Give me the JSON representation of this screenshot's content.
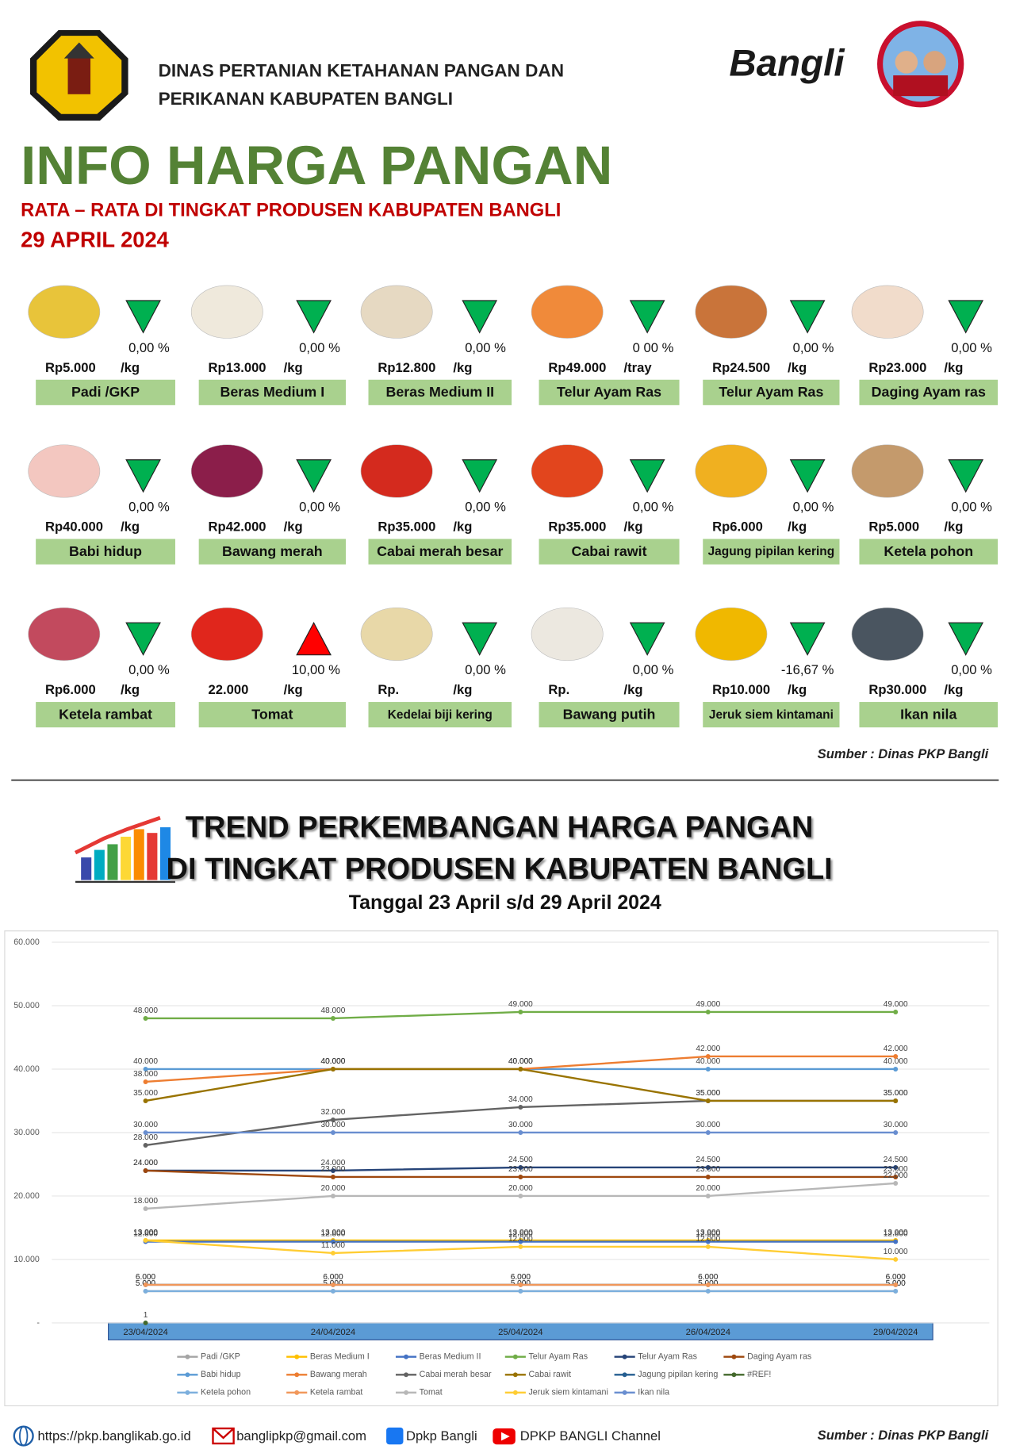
{
  "header": {
    "agency_line1": "DINAS PERTANIAN KETAHANAN PANGAN DAN",
    "agency_line2": "PERIKANAN KABUPATEN BANGLI",
    "brand": "Bangli",
    "title": "INFO HARGA PANGAN",
    "subtitle": "RATA – RATA DI TINGKAT PRODUSEN KABUPATEN BANGLI",
    "date": "29 APRIL 2024"
  },
  "items": [
    {
      "name": "Padi /GKP",
      "price": "Rp5.000",
      "unit": "/kg",
      "change": "0,00 %",
      "trend": "down"
    },
    {
      "name": "Beras Medium I",
      "price": "Rp13.000",
      "unit": "/kg",
      "change": "0,00 %",
      "trend": "down"
    },
    {
      "name": "Beras Medium II",
      "price": "Rp12.800",
      "unit": "/kg",
      "change": "0,00 %",
      "trend": "down"
    },
    {
      "name": "Telur Ayam Ras",
      "price": "Rp49.000",
      "unit": "/tray",
      "change": "0 00 %",
      "trend": "down"
    },
    {
      "name": "Telur Ayam Ras",
      "price": "Rp24.500",
      "unit": "/kg",
      "change": "0,00 %",
      "trend": "down"
    },
    {
      "name": "Daging Ayam ras",
      "price": "Rp23.000",
      "unit": "/kg",
      "change": "0,00 %",
      "trend": "down"
    },
    {
      "name": "Babi hidup",
      "price": "Rp40.000",
      "unit": "/kg",
      "change": "0,00 %",
      "trend": "down"
    },
    {
      "name": "Bawang merah",
      "price": "Rp42.000",
      "unit": "/kg",
      "change": "0,00 %",
      "trend": "down"
    },
    {
      "name": "Cabai merah besar",
      "price": "Rp35.000",
      "unit": "/kg",
      "change": "0,00 %",
      "trend": "down"
    },
    {
      "name": "Cabai rawit",
      "price": "Rp35.000",
      "unit": "/kg",
      "change": "0,00 %",
      "trend": "down"
    },
    {
      "name": "Jagung pipilan kering",
      "price": "Rp6.000",
      "unit": "/kg",
      "change": "0,00 %",
      "trend": "down"
    },
    {
      "name": "Ketela pohon",
      "price": "Rp5.000",
      "unit": "/kg",
      "change": "0,00 %",
      "trend": "down"
    },
    {
      "name": "Ketela rambat",
      "price": "Rp6.000",
      "unit": "/kg",
      "change": "0,00 %",
      "trend": "down"
    },
    {
      "name": "Tomat",
      "price": "22.000",
      "unit": "/kg",
      "change": "10,00 %",
      "trend": "up"
    },
    {
      "name": "Kedelai biji kering",
      "price": "Rp.",
      "unit": "/kg",
      "change": "0,00 %",
      "trend": "down"
    },
    {
      "name": "Bawang putih",
      "price": "Rp.",
      "unit": "/kg",
      "change": "0,00 %",
      "trend": "down"
    },
    {
      "name": "Jeruk siem kintamani",
      "price": "Rp10.000",
      "unit": "/kg",
      "change": "-16,67 %",
      "trend": "down"
    },
    {
      "name": "Ikan nila",
      "price": "Rp30.000",
      "unit": "/kg",
      "change": "0,00 %",
      "trend": "down"
    }
  ],
  "source": "Sumber : Dinas PKP Bangli",
  "trend_title_line1": "TREND PERKEMBANGAN HARGA PANGAN",
  "trend_title_line2": "DI TINGKAT PRODUSEN KABUPATEN BANGLI",
  "trend_period": "Tanggal 23 April s/d 29 April 2024",
  "chart_data": {
    "type": "line",
    "categories": [
      "23/04/2024",
      "24/04/2024",
      "25/04/2024",
      "26/04/2024",
      "29/04/2024"
    ],
    "ylim": [
      0,
      60000
    ],
    "yticks": [
      {
        "value": 0,
        "label": "-"
      },
      {
        "value": 10000,
        "label": "10.000"
      },
      {
        "value": 20000,
        "label": "20.000"
      },
      {
        "value": 30000,
        "label": "30.000"
      },
      {
        "value": 40000,
        "label": "40.000"
      },
      {
        "value": 50000,
        "label": "50.000"
      },
      {
        "value": 60000,
        "label": "60.000"
      }
    ],
    "grid": true,
    "series": [
      {
        "name": "Padi /GKP",
        "color": "#a5a5a5",
        "values": [
          5000,
          5000,
          5000,
          5000,
          5000
        ],
        "value_labels": [
          "5.000",
          "5.000",
          "5.000",
          "5.000",
          "5.000"
        ]
      },
      {
        "name": "Beras Medium I",
        "color": "#ffc000",
        "values": [
          13000,
          13000,
          13000,
          13000,
          13000
        ],
        "value_labels": [
          "13.000",
          "13.000",
          "13.000",
          "13.000",
          "13.000"
        ]
      },
      {
        "name": "Beras Medium II",
        "color": "#4472c4",
        "values": [
          12800,
          12800,
          12800,
          12800,
          12800
        ],
        "value_labels": [
          "12.800",
          "12.800",
          "12.800",
          "12.800",
          "12.800"
        ]
      },
      {
        "name": "Telur Ayam Ras",
        "color": "#70ad47",
        "values": [
          48000,
          48000,
          49000,
          49000,
          49000
        ],
        "value_labels": [
          "48.000",
          "48.000",
          "49.000",
          "49.000",
          "49.000"
        ]
      },
      {
        "name": "Telur Ayam Ras",
        "color": "#264478",
        "values": [
          24000,
          24000,
          24500,
          24500,
          24500
        ],
        "value_labels": [
          "24.000",
          "24.000",
          "24.500",
          "24.500",
          "24.500"
        ]
      },
      {
        "name": "Daging Ayam ras",
        "color": "#9e480e",
        "values": [
          24000,
          23000,
          23000,
          23000,
          23000
        ],
        "value_labels": [
          "24.000",
          "23.000",
          "23.000",
          "23.000",
          "23.000"
        ]
      },
      {
        "name": "Babi hidup",
        "color": "#5b9bd5",
        "values": [
          40000,
          40000,
          40000,
          40000,
          40000
        ],
        "value_labels": [
          "40.000",
          "40.000",
          "40.000",
          "40.000",
          "40.000"
        ]
      },
      {
        "name": "Bawang merah",
        "color": "#ed7d31",
        "values": [
          38000,
          40000,
          40000,
          42000,
          42000
        ],
        "value_labels": [
          "38.000",
          "40.000",
          "40.000",
          "42.000",
          "42.000"
        ]
      },
      {
        "name": "Cabai merah besar",
        "color": "#636363",
        "values": [
          28000,
          32000,
          34000,
          35000,
          35000
        ],
        "value_labels": [
          "28.000",
          "32.000",
          "34.000",
          "35.000",
          "35.000"
        ]
      },
      {
        "name": "Cabai rawit",
        "color": "#997300",
        "values": [
          35000,
          40000,
          40000,
          35000,
          35000
        ],
        "value_labels": [
          "35.000",
          "40.000",
          "40.000",
          "35.000",
          "35.000"
        ]
      },
      {
        "name": "Jagung pipilan kering",
        "color": "#255e91",
        "values": [
          6000,
          6000,
          6000,
          6000,
          6000
        ],
        "value_labels": [
          "6.000",
          "6.000",
          "6.000",
          "6.000",
          "6.000"
        ]
      },
      {
        "name": "#REF!",
        "color": "#43682b",
        "values": [
          1,
          null,
          null,
          null,
          null
        ],
        "value_labels": [
          "1",
          null,
          null,
          null,
          null
        ]
      },
      {
        "name": "Ketela pohon",
        "color": "#7cafdd",
        "values": [
          5000,
          5000,
          5000,
          5000,
          5000
        ],
        "value_labels": [
          "5.000",
          "5.000",
          "5.000",
          "5.000",
          "5.000"
        ]
      },
      {
        "name": "Ketela rambat",
        "color": "#f1975a",
        "values": [
          6000,
          6000,
          6000,
          6000,
          6000
        ],
        "value_labels": [
          "6.000",
          "6.000",
          "6.000",
          "6.000",
          "6.000"
        ]
      },
      {
        "name": "Tomat",
        "color": "#b7b7b7",
        "values": [
          18000,
          20000,
          20000,
          20000,
          22000
        ],
        "value_labels": [
          "18.000",
          "20.000",
          "20.000",
          "20.000",
          "22.000"
        ]
      },
      {
        "name": "Jeruk siem kintamani",
        "color": "#ffcd33",
        "values": [
          13000,
          11000,
          12000,
          12000,
          10000
        ],
        "value_labels": [
          "13.000",
          "11.000",
          "12.000",
          "12.000",
          "10.000"
        ]
      },
      {
        "name": "Ikan nila",
        "color": "#698ed0",
        "values": [
          30000,
          30000,
          30000,
          30000,
          30000
        ],
        "value_labels": [
          "30.000",
          "30.000",
          "30.000",
          "30.000",
          "30.000"
        ]
      }
    ]
  },
  "footer": {
    "website": "https://pkp.banglikab.go.id",
    "email": "banglipkp@gmail.com",
    "facebook": "Dpkp Bangli",
    "youtube": "DPKP BANGLI Channel",
    "source": "Sumber : Dinas PKP Bangli"
  }
}
